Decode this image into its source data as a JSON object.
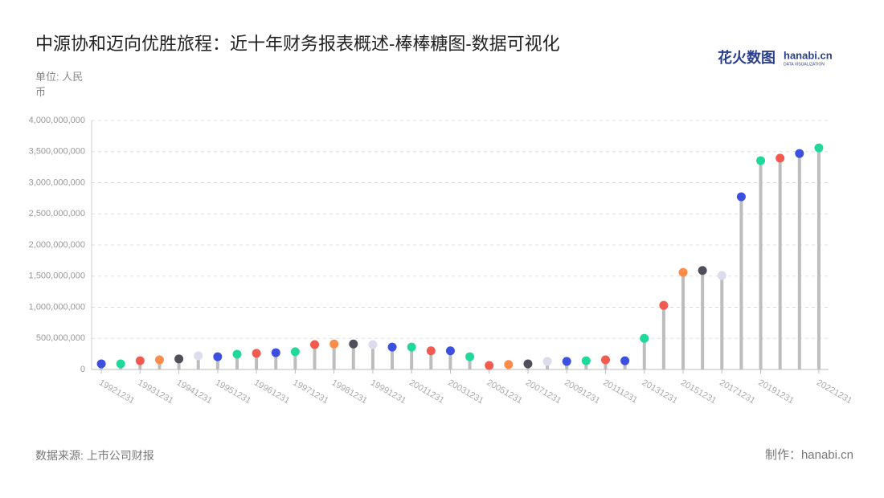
{
  "chart_data": {
    "type": "lollipop",
    "title": "中源协和迈向优胜旅程：近十年财务报表概述-棒棒糖图-数据可视化",
    "logo": "花火数图",
    "logo_sub": "hanabi.cn",
    "logo_tag": "DATA VISUALIZATION",
    "unit": "单位: 人民币",
    "source": "数据来源: 上市公司财报",
    "credit": "制作：hanabi.cn",
    "categories": [
      "19921231",
      null,
      "19931231",
      null,
      "19941231",
      null,
      "19951231",
      null,
      "19961231",
      null,
      "19971231",
      null,
      "19981231",
      null,
      "19991231",
      null,
      "20011231",
      null,
      "20031231",
      null,
      "20051231",
      null,
      "20071231",
      null,
      "20091231",
      null,
      "20111231",
      null,
      "20131231",
      null,
      "20151231",
      null,
      "20171231",
      null,
      "20191231",
      null,
      null,
      "20221231"
    ],
    "values": [
      90000000,
      90000000,
      140000000,
      155000000,
      170000000,
      220000000,
      205000000,
      245000000,
      260000000,
      270000000,
      285000000,
      400000000,
      410000000,
      410000000,
      400000000,
      360000000,
      360000000,
      300000000,
      300000000,
      205000000,
      65000000,
      80000000,
      90000000,
      130000000,
      130000000,
      140000000,
      155000000,
      140000000,
      500000000,
      1030000000,
      1560000000,
      1590000000,
      1510000000,
      2775000000,
      3355000000,
      3395000000,
      3470000000,
      3560000000
    ],
    "colors": [
      "#3b50e0",
      "#1ed99b",
      "#f25a4f",
      "#fb8c4a",
      "#4f4f5c",
      "#dcdcef",
      "#3b50e0",
      "#1ed99b",
      "#f25a4f",
      "#3b50e0",
      "#1ed99b",
      "#f25a4f",
      "#fb8c4a",
      "#4f4f5c",
      "#dcdcef",
      "#3b50e0",
      "#1ed99b",
      "#f25a4f",
      "#3b50e0",
      "#1ed99b",
      "#f25a4f",
      "#fb8c4a",
      "#4f4f5c",
      "#dcdcef",
      "#3b50e0",
      "#1ed99b",
      "#f25a4f",
      "#3b50e0",
      "#1ed99b",
      "#f25a4f",
      "#fb8c4a",
      "#4f4f5c",
      "#dcdcef",
      "#3b50e0",
      "#1ed99b",
      "#f25a4f",
      "#3b50e0",
      "#1ed99b"
    ],
    "stem_color": "#bdbdbd",
    "ylim": [
      0,
      4000000000
    ],
    "yticks": [
      0,
      {
        "value": 500000000,
        "label": "500,000,000"
      },
      {
        "value": 1000000000,
        "label": "1,000,000,000"
      },
      {
        "value": 1500000000,
        "label": "1,500,000,000"
      },
      {
        "value": 2000000000,
        "label": "2,000,000,000"
      },
      {
        "value": 2500000000,
        "label": "2,500,000,000"
      },
      {
        "value": 3000000000,
        "label": "3,000,000,000"
      },
      {
        "value": 3500000000,
        "label": "3,500,000,000"
      },
      {
        "value": 4000000000,
        "label": "4,000,000,000"
      }
    ],
    "grid": true
  }
}
